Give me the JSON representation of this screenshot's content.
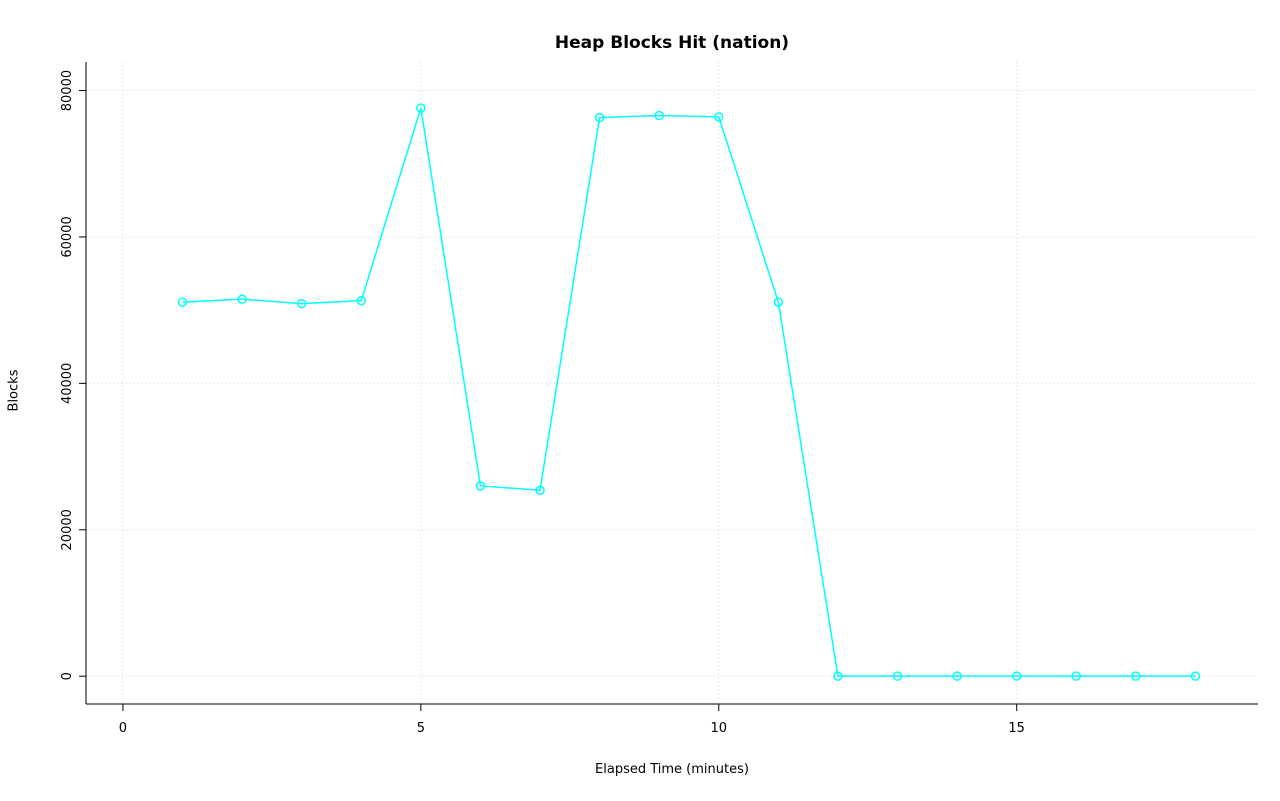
{
  "chart_data": {
    "type": "line",
    "title": "Heap Blocks Hit (nation)",
    "xlabel": "Elapsed Time (minutes)",
    "ylabel": "Blocks",
    "x": [
      1,
      2,
      3,
      4,
      5,
      6,
      7,
      8,
      9,
      10,
      11,
      12,
      13,
      14,
      15,
      16,
      17,
      18
    ],
    "series": [
      {
        "name": "nation",
        "values": [
          51100,
          51500,
          50900,
          51300,
          77600,
          26000,
          25400,
          76300,
          76600,
          76400,
          51100,
          0,
          0,
          0,
          0,
          0,
          0,
          0
        ]
      }
    ],
    "x_ticks": [
      0,
      5,
      10,
      15
    ],
    "x_tick_labels": [
      "0",
      "5",
      "10",
      "15"
    ],
    "y_ticks": [
      0,
      20000,
      40000,
      60000,
      80000
    ],
    "y_tick_labels": [
      "0",
      "20000",
      "40000",
      "60000",
      "80000"
    ],
    "xlim": [
      0.3,
      18.7
    ],
    "ylim": [
      0,
      80000
    ],
    "grid": true,
    "legend": "none",
    "line_color": "#00FFFF",
    "grid_color": "#D3D3D3",
    "axis_color": "#000000",
    "marker": "open-circle"
  }
}
